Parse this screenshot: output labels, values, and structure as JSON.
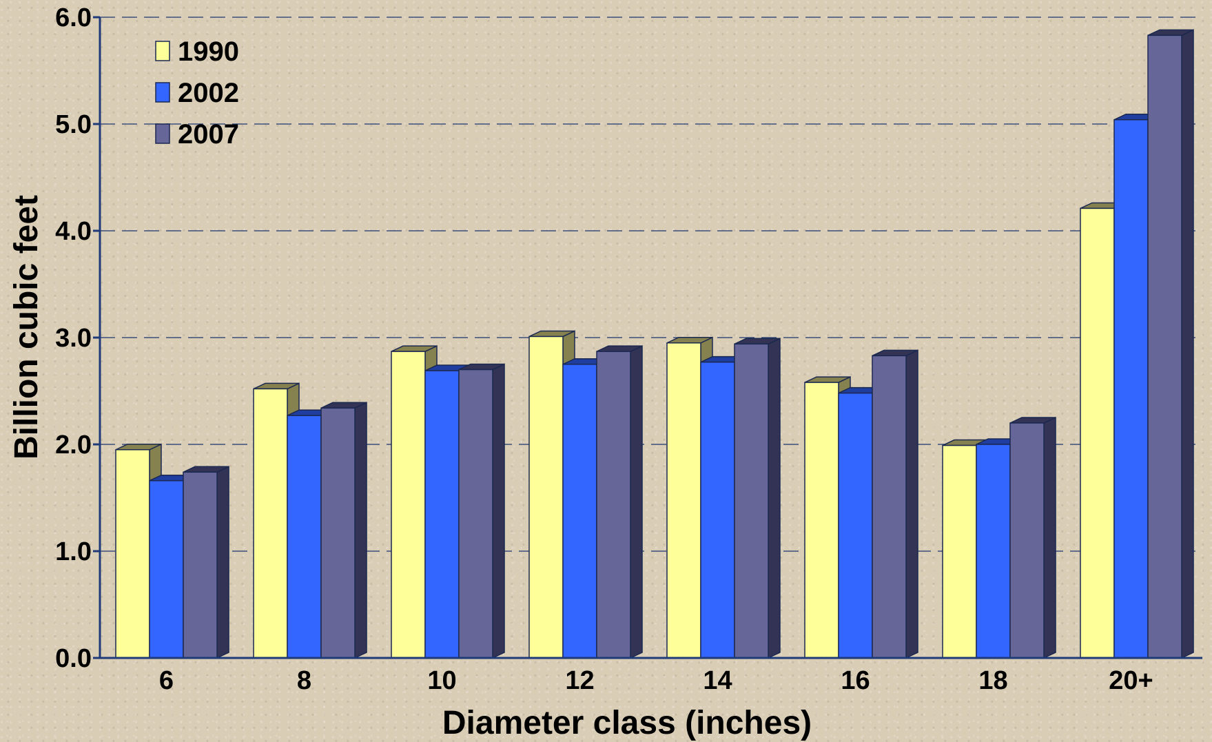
{
  "chart_data": {
    "type": "bar",
    "categories": [
      "6",
      "8",
      "10",
      "12",
      "14",
      "16",
      "18",
      "20+"
    ],
    "series": [
      {
        "name": "1990",
        "values": [
          1.95,
          2.52,
          2.87,
          3.01,
          2.95,
          2.58,
          1.99,
          4.21
        ],
        "color": "#ffff99",
        "side_color": "#86824f"
      },
      {
        "name": "2002",
        "values": [
          1.66,
          2.27,
          2.69,
          2.75,
          2.77,
          2.48,
          2.0,
          5.04
        ],
        "color": "#3366ff",
        "side_color": "#1f3ea0"
      },
      {
        "name": "2007",
        "values": [
          1.74,
          2.34,
          2.7,
          2.87,
          2.94,
          2.83,
          2.2,
          5.83
        ],
        "color": "#666699",
        "side_color": "#333355"
      }
    ],
    "xlabel": "Diameter class (inches)",
    "ylabel": "Billion cubic feet",
    "ylim": [
      0,
      6
    ],
    "yticks": [
      "0.0",
      "1.0",
      "2.0",
      "3.0",
      "4.0",
      "5.0",
      "6.0"
    ],
    "grid": true,
    "legend_position": "top-left"
  }
}
